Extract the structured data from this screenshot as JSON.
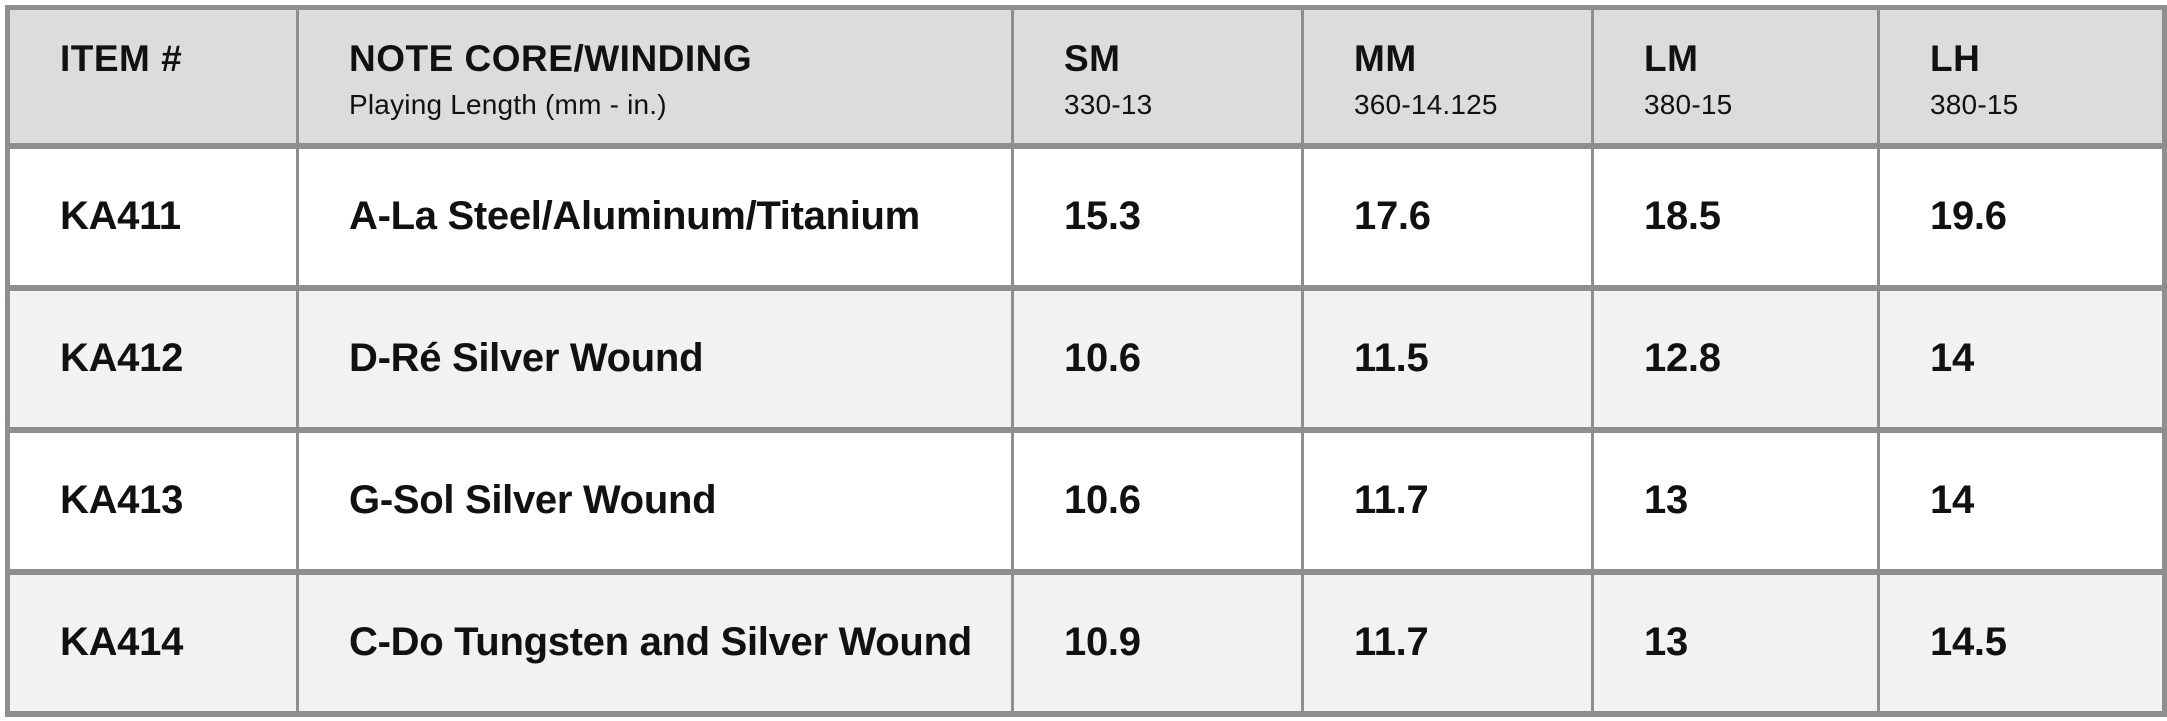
{
  "colors": {
    "header_bg": "#dcdcdc",
    "row_bg": "#ffffff",
    "row_alt_bg": "#f1f2f2",
    "border": "#8e8e8e",
    "text": "#111111",
    "page_bg": "#ffffff"
  },
  "table": {
    "columns": [
      {
        "label": "ITEM #",
        "sublabel": ""
      },
      {
        "label": "NOTE CORE/WINDING",
        "sublabel": "Playing Length (mm - in.)"
      },
      {
        "label": "SM",
        "sublabel": "330-13"
      },
      {
        "label": "MM",
        "sublabel": "360-14.125"
      },
      {
        "label": "LM",
        "sublabel": "380-15"
      },
      {
        "label": "LH",
        "sublabel": "380-15"
      }
    ],
    "rows": [
      {
        "item": "KA411",
        "note": "A-La Steel/Aluminum/Titanium",
        "sm": "15.3",
        "mm": "17.6",
        "lm": "18.5",
        "lh": "19.6"
      },
      {
        "item": "KA412",
        "note": "D-Ré Silver Wound",
        "sm": "10.6",
        "mm": "11.5",
        "lm": "12.8",
        "lh": "14"
      },
      {
        "item": "KA413",
        "note": "G-Sol Silver Wound",
        "sm": "10.6",
        "mm": "11.7",
        "lm": "13",
        "lh": "14"
      },
      {
        "item": "KA414",
        "note": "C-Do Tungsten and Silver Wound",
        "sm": "10.9",
        "mm": "11.7",
        "lm": "13",
        "lh": "14.5"
      }
    ]
  }
}
